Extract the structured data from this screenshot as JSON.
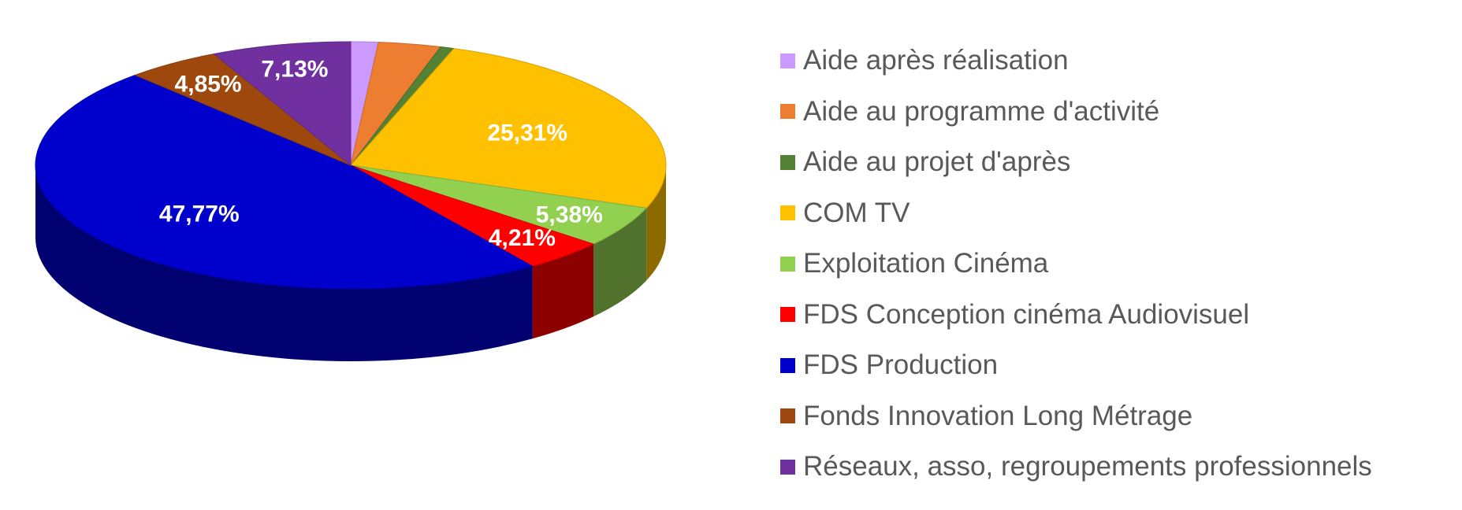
{
  "chart_data": {
    "type": "pie",
    "style": "3d",
    "legend_position": "right",
    "categories": [
      "Aide après réalisation",
      "Aide au programme d'activité",
      "Aide au projet d'après",
      "COM TV",
      "Exploitation Cinéma",
      "FDS Conception cinéma Audiovisuel",
      "FDS Production",
      "Fonds Innovation Long Métrage",
      "Réseaux, asso, regroupements professionnels"
    ],
    "values": [
      1.4,
      3.2,
      0.7,
      25.31,
      5.38,
      4.21,
      47.77,
      4.85,
      7.13
    ],
    "data_labels": [
      "",
      "",
      "",
      "25,31%",
      "5,38%",
      "4,21%",
      "47,77%",
      "4,85%",
      "7,13%"
    ],
    "colors": [
      "#cc99ff",
      "#ed7d31",
      "#548235",
      "#ffc000",
      "#92d050",
      "#ff0000",
      "#0000cc",
      "#9e480e",
      "#7030a0"
    ]
  }
}
